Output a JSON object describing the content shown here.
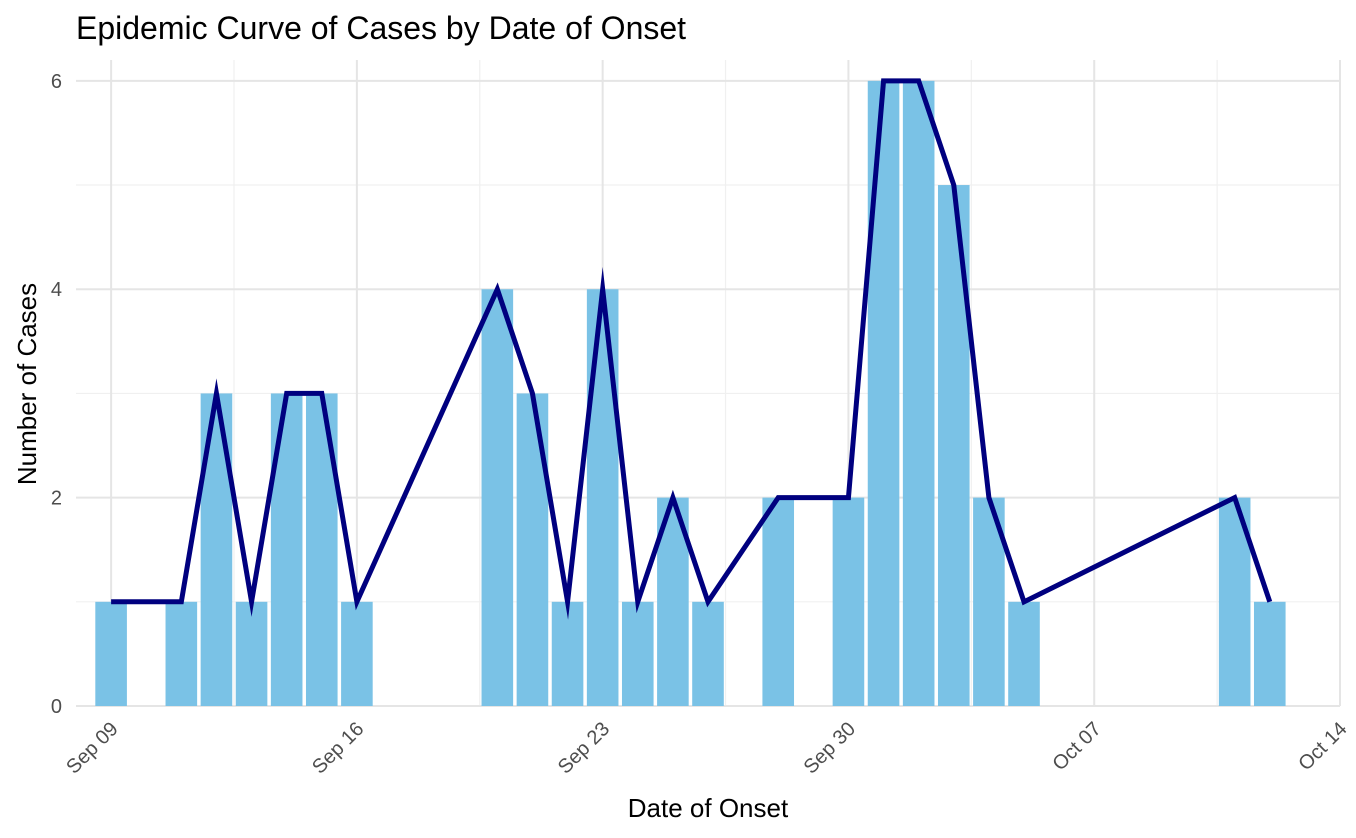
{
  "chart_data": {
    "type": "bar",
    "title": "Epidemic Curve of Cases by Date of Onset",
    "xlabel": "Date of Onset",
    "ylabel": "Number of Cases",
    "x_axis_type": "date",
    "xlim": [
      "2023-09-08",
      "2023-10-14"
    ],
    "ylim": [
      0,
      6.2
    ],
    "x_ticks": [
      {
        "date": "2023-09-09",
        "label": "Sep 09"
      },
      {
        "date": "2023-09-16",
        "label": "Sep 16"
      },
      {
        "date": "2023-09-23",
        "label": "Sep 23"
      },
      {
        "date": "2023-09-30",
        "label": "Sep 30"
      },
      {
        "date": "2023-10-07",
        "label": "Oct 07"
      },
      {
        "date": "2023-10-14",
        "label": "Oct 14"
      }
    ],
    "y_ticks": [
      0,
      2,
      4,
      6
    ],
    "grid": true,
    "colors": {
      "bar": "#7AC2E6",
      "line": "#00007F",
      "grid_major": "#E5E5E5",
      "grid_minor": "#F0F0F0"
    },
    "series": [
      {
        "type": "bar",
        "x": [
          "2023-09-09",
          "2023-09-11",
          "2023-09-12",
          "2023-09-13",
          "2023-09-14",
          "2023-09-15",
          "2023-09-16",
          "2023-09-20",
          "2023-09-21",
          "2023-09-22",
          "2023-09-23",
          "2023-09-24",
          "2023-09-25",
          "2023-09-26",
          "2023-09-28",
          "2023-09-30",
          "2023-10-01",
          "2023-10-02",
          "2023-10-03",
          "2023-10-04",
          "2023-10-05",
          "2023-10-11",
          "2023-10-12"
        ],
        "values": [
          1,
          1,
          3,
          1,
          3,
          3,
          1,
          4,
          3,
          1,
          4,
          1,
          2,
          1,
          2,
          2,
          6,
          6,
          5,
          2,
          1,
          2,
          1
        ]
      },
      {
        "type": "line",
        "x": [
          "2023-09-09",
          "2023-09-11",
          "2023-09-12",
          "2023-09-13",
          "2023-09-14",
          "2023-09-15",
          "2023-09-16",
          "2023-09-20",
          "2023-09-21",
          "2023-09-22",
          "2023-09-23",
          "2023-09-24",
          "2023-09-25",
          "2023-09-26",
          "2023-09-28",
          "2023-09-30",
          "2023-10-01",
          "2023-10-02",
          "2023-10-03",
          "2023-10-04",
          "2023-10-05",
          "2023-10-11",
          "2023-10-12"
        ],
        "values": [
          1,
          1,
          3,
          1,
          3,
          3,
          1,
          4,
          3,
          1,
          4,
          1,
          2,
          1,
          2,
          2,
          6,
          6,
          5,
          2,
          1,
          2,
          1
        ]
      }
    ]
  }
}
